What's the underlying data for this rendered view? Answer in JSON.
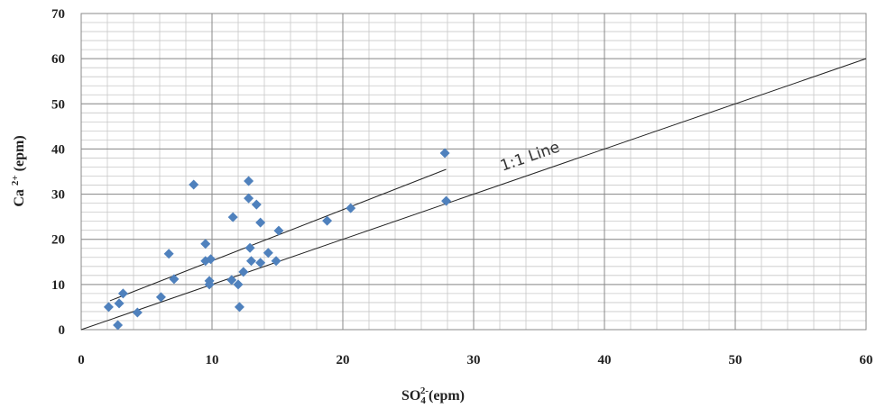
{
  "chart_data": {
    "type": "scatter",
    "x_label": {
      "base": "SO",
      "sub": "4",
      "sup": "2-",
      "unit": "(epm)"
    },
    "y_label": {
      "base": "Ca",
      "sup": "2+",
      "unit": "(epm)"
    },
    "xlim": [
      0,
      60
    ],
    "xticks": [
      0,
      10,
      20,
      30,
      40,
      50,
      60
    ],
    "ylim": [
      0,
      70
    ],
    "yticks": [
      0,
      10,
      20,
      30,
      40,
      50,
      60,
      70
    ],
    "grid": true,
    "minor_grid_step": {
      "x": 2,
      "y": 2
    },
    "series": [
      {
        "color": "#4f81bd",
        "x": [
          2.1,
          2.8,
          2.9,
          3.2,
          4.3,
          6.1,
          6.7,
          7.1,
          8.6,
          9.5,
          9.5,
          9.9,
          9.8,
          9.8,
          11.6,
          11.5,
          12.0,
          12.1,
          12.4,
          12.8,
          12.8,
          13.4,
          12.9,
          13.0,
          13.7,
          13.7,
          14.3,
          14.9,
          15.1,
          18.8,
          20.6,
          27.8,
          27.9
        ],
        "values": [
          5.0,
          1.0,
          5.8,
          8.0,
          3.8,
          7.2,
          16.8,
          11.2,
          32.1,
          19.0,
          15.2,
          15.6,
          10.8,
          10.0,
          24.9,
          11.0,
          10.0,
          5.0,
          12.8,
          32.9,
          29.1,
          27.7,
          18.1,
          15.2,
          23.7,
          14.8,
          17.0,
          15.2,
          21.9,
          24.1,
          26.9,
          39.1,
          28.5
        ]
      }
    ],
    "reference_line": {
      "label": "1:1 Line",
      "x": [
        0,
        60
      ],
      "y": [
        0,
        60
      ]
    },
    "trend_line": {
      "x": [
        2.2,
        27.9
      ],
      "y": [
        6.4,
        35.5
      ]
    }
  }
}
